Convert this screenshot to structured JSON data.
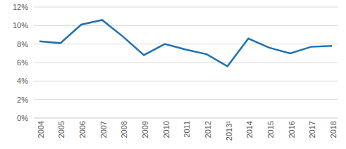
{
  "chart_data": {
    "type": "line",
    "categories": [
      "2004",
      "2005",
      "2006",
      "2007",
      "2008",
      "2009",
      "2010",
      "2011",
      "2012",
      "2013¹",
      "2014",
      "2015",
      "2016",
      "2017",
      "2018"
    ],
    "values": [
      8.3,
      8.1,
      10.1,
      10.6,
      8.8,
      6.8,
      8.0,
      7.4,
      6.9,
      5.6,
      8.6,
      7.6,
      7.0,
      7.7,
      7.8
    ],
    "color": "#1f72b4",
    "ylim": [
      0,
      12
    ],
    "yticks": [
      {
        "value": 0,
        "label": "0%"
      },
      {
        "value": 2,
        "label": "2%"
      },
      {
        "value": 4,
        "label": "4%"
      },
      {
        "value": 6,
        "label": "6%"
      },
      {
        "value": 8,
        "label": "8%"
      },
      {
        "value": 10,
        "label": "10%"
      },
      {
        "value": 12,
        "label": "12%"
      }
    ],
    "grid": true
  }
}
